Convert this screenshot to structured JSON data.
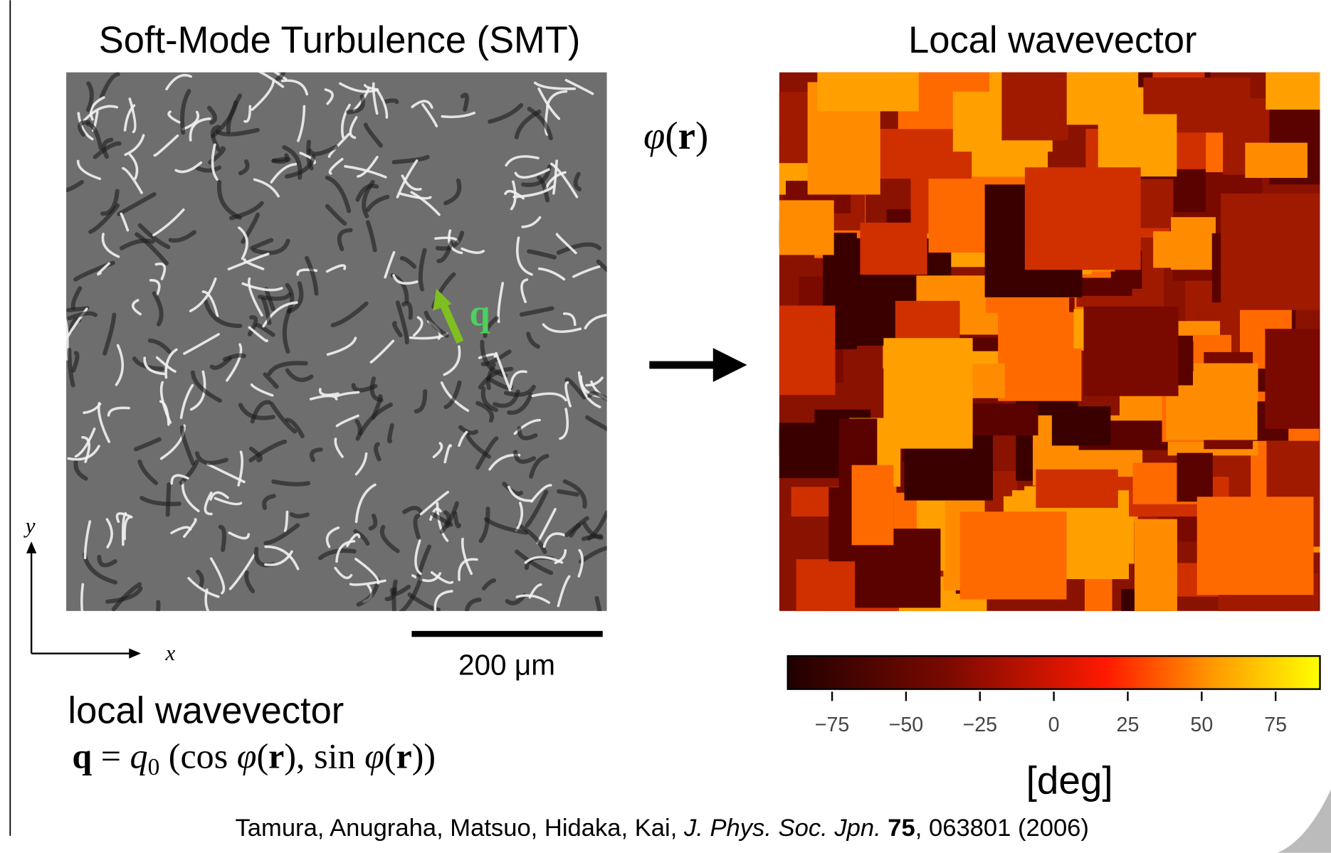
{
  "left_title": "Soft-Mode Turbulence (SMT)",
  "right_title": "Local wavevector",
  "phi_label": [
    "φ",
    "(",
    "r",
    ")"
  ],
  "q_label": "q",
  "axis_y": "y",
  "axis_x": "x",
  "scale_bar": "200 μm",
  "caption": "local wavevector",
  "formula": [
    "q",
    " = ",
    "q",
    "0",
    " (cos ",
    "φ",
    "(",
    "r",
    "), sin ",
    "φ",
    "(",
    "r",
    "))"
  ],
  "colorbar": {
    "lim": [
      -90,
      90
    ],
    "ticks": [
      {
        "value": -75,
        "label": "−75"
      },
      {
        "value": -50,
        "label": "−50"
      },
      {
        "value": -25,
        "label": "−25"
      },
      0,
      25,
      50,
      75
    ],
    "label": "[deg]"
  },
  "citation": {
    "authors": "Tamura, Anugraha, Matsuo, Hidaka, Kai, ",
    "journal": "J. Phys. Soc. Jpn.",
    "volume": "75",
    "rest": ", 063801 (2006)"
  }
}
